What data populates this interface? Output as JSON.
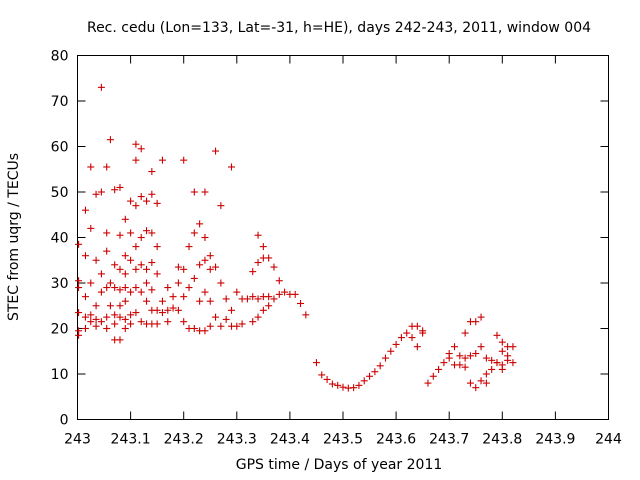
{
  "chart_data": {
    "type": "scatter",
    "title": "Rec. cedu (Lon=133, Lat=-31, h=HE), days 242-243, 2011, window 004",
    "xlabel": "GPS time / Days of year 2011",
    "ylabel": "STEC from uqrg / TECUs",
    "xlim": [
      243,
      244
    ],
    "ylim": [
      0,
      80
    ],
    "x_ticks": [
      "243",
      "243.1",
      "243.2",
      "243.3",
      "243.4",
      "243.5",
      "243.6",
      "243.7",
      "243.8",
      "243.9",
      "244"
    ],
    "y_ticks": [
      "0",
      "10",
      "20",
      "30",
      "40",
      "50",
      "60",
      "70",
      "80"
    ],
    "grid": false,
    "legend": "none",
    "marker": "+",
    "color": "#cc0000",
    "series": [
      {
        "points": [
          [
            243.002,
            38.5
          ],
          [
            243.002,
            30.5
          ],
          [
            243.002,
            29.0
          ],
          [
            243.002,
            23.5
          ],
          [
            243.002,
            19.5
          ],
          [
            243.002,
            18.5
          ],
          [
            243.015,
            46.0
          ],
          [
            243.015,
            36.0
          ],
          [
            243.015,
            27.0
          ],
          [
            243.015,
            22.5
          ],
          [
            243.015,
            20.0
          ],
          [
            243.025,
            55.5
          ],
          [
            243.025,
            42.0
          ],
          [
            243.025,
            30.0
          ],
          [
            243.025,
            23.0
          ],
          [
            243.025,
            21.5
          ],
          [
            243.035,
            49.5
          ],
          [
            243.035,
            35.0
          ],
          [
            243.035,
            25.0
          ],
          [
            243.035,
            22.0
          ],
          [
            243.035,
            20.5
          ],
          [
            243.045,
            73.0
          ],
          [
            243.045,
            50.0
          ],
          [
            243.045,
            32.0
          ],
          [
            243.045,
            28.0
          ],
          [
            243.045,
            21.5
          ],
          [
            243.055,
            55.5
          ],
          [
            243.055,
            41.0
          ],
          [
            243.055,
            37.0
          ],
          [
            243.055,
            29.0
          ],
          [
            243.055,
            22.5
          ],
          [
            243.055,
            20.0
          ],
          [
            243.062,
            61.5
          ],
          [
            243.062,
            30.0
          ],
          [
            243.062,
            25.0
          ],
          [
            243.07,
            50.5
          ],
          [
            243.07,
            34.0
          ],
          [
            243.07,
            29.0
          ],
          [
            243.07,
            23.0
          ],
          [
            243.07,
            21.0
          ],
          [
            243.07,
            17.5
          ],
          [
            243.08,
            51.0
          ],
          [
            243.08,
            40.5
          ],
          [
            243.08,
            33.0
          ],
          [
            243.08,
            28.5
          ],
          [
            243.08,
            25.0
          ],
          [
            243.08,
            22.5
          ],
          [
            243.08,
            17.5
          ],
          [
            243.09,
            44.0
          ],
          [
            243.09,
            36.0
          ],
          [
            243.09,
            32.0
          ],
          [
            243.09,
            29.0
          ],
          [
            243.09,
            26.0
          ],
          [
            243.09,
            22.0
          ],
          [
            243.09,
            20.0
          ],
          [
            243.1,
            48.0
          ],
          [
            243.1,
            41.0
          ],
          [
            243.1,
            35.0
          ],
          [
            243.1,
            28.0
          ],
          [
            243.1,
            23.0
          ],
          [
            243.1,
            21.0
          ],
          [
            243.11,
            60.5
          ],
          [
            243.11,
            57.0
          ],
          [
            243.11,
            47.0
          ],
          [
            243.11,
            38.0
          ],
          [
            243.11,
            33.0
          ],
          [
            243.11,
            29.0
          ],
          [
            243.11,
            23.5
          ],
          [
            243.12,
            59.5
          ],
          [
            243.12,
            49.0
          ],
          [
            243.12,
            40.0
          ],
          [
            243.12,
            34.0
          ],
          [
            243.12,
            28.0
          ],
          [
            243.12,
            21.5
          ],
          [
            243.13,
            48.0
          ],
          [
            243.13,
            41.5
          ],
          [
            243.13,
            33.0
          ],
          [
            243.13,
            30.0
          ],
          [
            243.13,
            26.0
          ],
          [
            243.13,
            21.0
          ],
          [
            243.14,
            54.5
          ],
          [
            243.14,
            49.5
          ],
          [
            243.14,
            41.0
          ],
          [
            243.14,
            34.5
          ],
          [
            243.14,
            28.5
          ],
          [
            243.14,
            24.0
          ],
          [
            243.14,
            21.0
          ],
          [
            243.15,
            47.5
          ],
          [
            243.15,
            38.0
          ],
          [
            243.15,
            32.0
          ],
          [
            243.15,
            24.0
          ],
          [
            243.15,
            21.0
          ],
          [
            243.16,
            57.0
          ],
          [
            243.16,
            26.0
          ],
          [
            243.16,
            23.5
          ],
          [
            243.17,
            29.0
          ],
          [
            243.17,
            24.0
          ],
          [
            243.17,
            21.5
          ],
          [
            243.18,
            27.0
          ],
          [
            243.18,
            24.5
          ],
          [
            243.19,
            33.5
          ],
          [
            243.19,
            30.0
          ],
          [
            243.19,
            24.0
          ],
          [
            243.2,
            57.0
          ],
          [
            243.2,
            33.0
          ],
          [
            243.2,
            27.0
          ],
          [
            243.2,
            21.5
          ],
          [
            243.21,
            38.0
          ],
          [
            243.21,
            29.0
          ],
          [
            243.21,
            20.0
          ],
          [
            243.22,
            50.0
          ],
          [
            243.22,
            41.0
          ],
          [
            243.22,
            31.0
          ],
          [
            243.22,
            20.0
          ],
          [
            243.23,
            43.0
          ],
          [
            243.23,
            34.0
          ],
          [
            243.23,
            26.0
          ],
          [
            243.23,
            19.5
          ],
          [
            243.24,
            50.0
          ],
          [
            243.24,
            40.0
          ],
          [
            243.24,
            35.0
          ],
          [
            243.24,
            28.0
          ],
          [
            243.24,
            19.5
          ],
          [
            243.25,
            36.0
          ],
          [
            243.25,
            33.0
          ],
          [
            243.25,
            26.0
          ],
          [
            243.25,
            20.5
          ],
          [
            243.26,
            59.0
          ],
          [
            243.26,
            33.5
          ],
          [
            243.26,
            22.5
          ],
          [
            243.27,
            47.0
          ],
          [
            243.27,
            30.0
          ],
          [
            243.27,
            20.5
          ],
          [
            243.28,
            26.5
          ],
          [
            243.28,
            22.0
          ],
          [
            243.29,
            55.5
          ],
          [
            243.29,
            24.0
          ],
          [
            243.29,
            20.5
          ],
          [
            243.3,
            28.0
          ],
          [
            243.3,
            20.5
          ],
          [
            243.31,
            26.5
          ],
          [
            243.31,
            21.0
          ],
          [
            243.32,
            26.5
          ],
          [
            243.33,
            32.5
          ],
          [
            243.33,
            27.0
          ],
          [
            243.33,
            21.5
          ],
          [
            243.34,
            40.5
          ],
          [
            243.34,
            34.5
          ],
          [
            243.34,
            26.5
          ],
          [
            243.34,
            22.5
          ],
          [
            243.35,
            38.0
          ],
          [
            243.35,
            35.5
          ],
          [
            243.35,
            27.0
          ],
          [
            243.35,
            24.0
          ],
          [
            243.36,
            35.5
          ],
          [
            243.36,
            27.0
          ],
          [
            243.36,
            25.0
          ],
          [
            243.37,
            33.5
          ],
          [
            243.37,
            26.5
          ],
          [
            243.38,
            30.5
          ],
          [
            243.38,
            27.5
          ],
          [
            243.39,
            28.0
          ],
          [
            243.4,
            27.5
          ],
          [
            243.41,
            27.5
          ],
          [
            243.42,
            25.5
          ],
          [
            243.43,
            23.0
          ],
          [
            243.45,
            12.5
          ],
          [
            243.46,
            9.8
          ],
          [
            243.47,
            8.8
          ],
          [
            243.48,
            7.8
          ],
          [
            243.49,
            7.5
          ],
          [
            243.5,
            7.1
          ],
          [
            243.51,
            6.9
          ],
          [
            243.52,
            7.0
          ],
          [
            243.53,
            7.5
          ],
          [
            243.54,
            8.5
          ],
          [
            243.55,
            9.5
          ],
          [
            243.56,
            10.5
          ],
          [
            243.57,
            11.8
          ],
          [
            243.58,
            13.5
          ],
          [
            243.59,
            15.0
          ],
          [
            243.6,
            16.5
          ],
          [
            243.61,
            18.0
          ],
          [
            243.62,
            19.0
          ],
          [
            243.63,
            20.5
          ],
          [
            243.64,
            20.5
          ],
          [
            243.65,
            19.5
          ],
          [
            243.63,
            18.0
          ],
          [
            243.64,
            16.0
          ],
          [
            243.65,
            19.0
          ],
          [
            243.66,
            8.0
          ],
          [
            243.67,
            9.5
          ],
          [
            243.68,
            11.0
          ],
          [
            243.69,
            12.5
          ],
          [
            243.7,
            13.5
          ],
          [
            243.7,
            14.5
          ],
          [
            243.71,
            16.0
          ],
          [
            243.71,
            12.0
          ],
          [
            243.72,
            14.0
          ],
          [
            243.72,
            12.0
          ],
          [
            243.73,
            19.0
          ],
          [
            243.73,
            13.5
          ],
          [
            243.73,
            11.5
          ],
          [
            243.74,
            21.5
          ],
          [
            243.74,
            14.0
          ],
          [
            243.74,
            8.0
          ],
          [
            243.75,
            21.5
          ],
          [
            243.75,
            14.5
          ],
          [
            243.75,
            7.0
          ],
          [
            243.76,
            22.5
          ],
          [
            243.76,
            16.0
          ],
          [
            243.76,
            8.5
          ],
          [
            243.77,
            13.5
          ],
          [
            243.77,
            10.0
          ],
          [
            243.77,
            8.0
          ],
          [
            243.78,
            13.0
          ],
          [
            243.78,
            11.0
          ],
          [
            243.79,
            18.5
          ],
          [
            243.79,
            12.5
          ],
          [
            243.79,
            12.5
          ],
          [
            243.8,
            17.0
          ],
          [
            243.8,
            15.0
          ],
          [
            243.8,
            12.0
          ],
          [
            243.8,
            11.0
          ],
          [
            243.81,
            16.0
          ],
          [
            243.81,
            14.0
          ],
          [
            243.81,
            13.0
          ],
          [
            243.82,
            16.0
          ],
          [
            243.82,
            12.5
          ]
        ]
      }
    ]
  }
}
